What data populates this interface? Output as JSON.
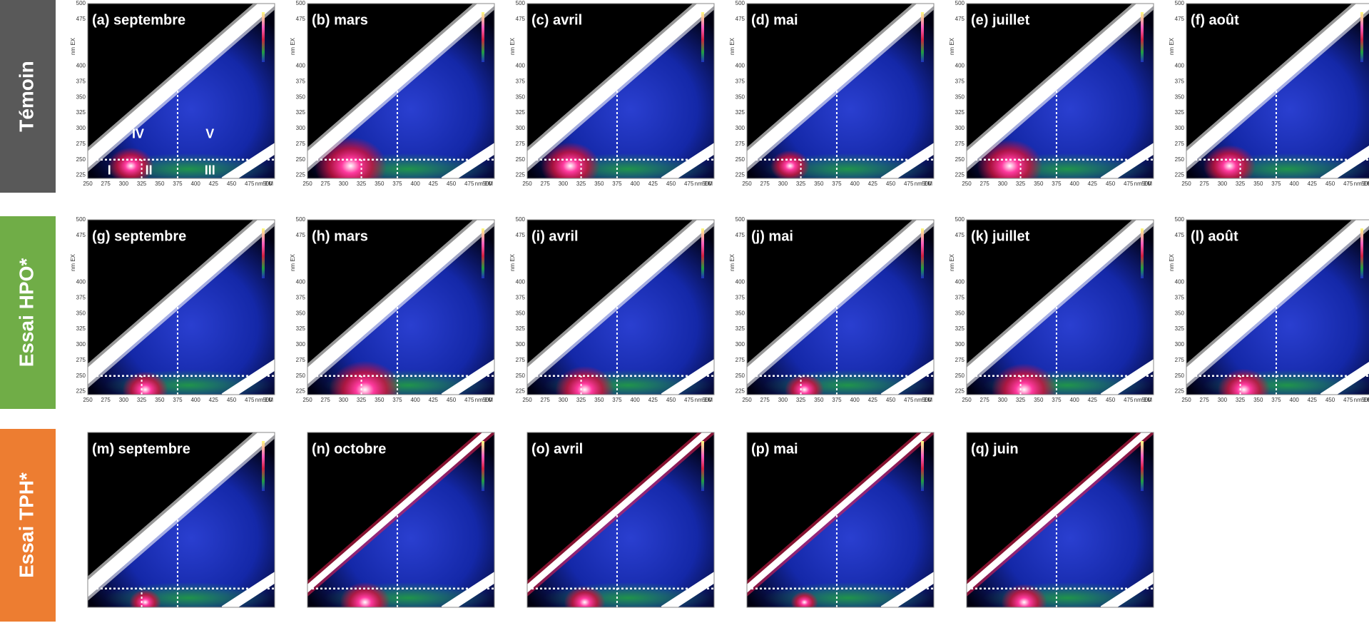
{
  "rows": [
    {
      "label": "Témoin",
      "panels": [
        {
          "label": "(a) septembre"
        },
        {
          "label": "(b) mars"
        },
        {
          "label": "(c) avril"
        },
        {
          "label": "(d) mai"
        },
        {
          "label": "(e) juillet"
        },
        {
          "label": "(f) août"
        }
      ]
    },
    {
      "label": "Essai HPO*",
      "panels": [
        {
          "label": "(g) septembre"
        },
        {
          "label": "(h) mars"
        },
        {
          "label": "(i) avril"
        },
        {
          "label": "(j) mai"
        },
        {
          "label": "(k) juillet"
        },
        {
          "label": "(l) août"
        }
      ]
    },
    {
      "label": "Essai TPH*",
      "panels": [
        {
          "label": "(m) septembre"
        },
        {
          "label": "(n) octobre"
        },
        {
          "label": "(o) avril"
        },
        {
          "label": "(p) mai"
        },
        {
          "label": "(q) juin"
        }
      ]
    }
  ],
  "axes": {
    "y_label": "nm EX",
    "x_label": "nm EM",
    "yticks": [
      225,
      250,
      275,
      300,
      325,
      350,
      375,
      400,
      475,
      500
    ],
    "xticks": [
      250,
      275,
      300,
      325,
      350,
      375,
      400,
      425,
      450,
      475,
      500
    ]
  },
  "regions": [
    "I",
    "II",
    "III",
    "IV",
    "V"
  ]
}
